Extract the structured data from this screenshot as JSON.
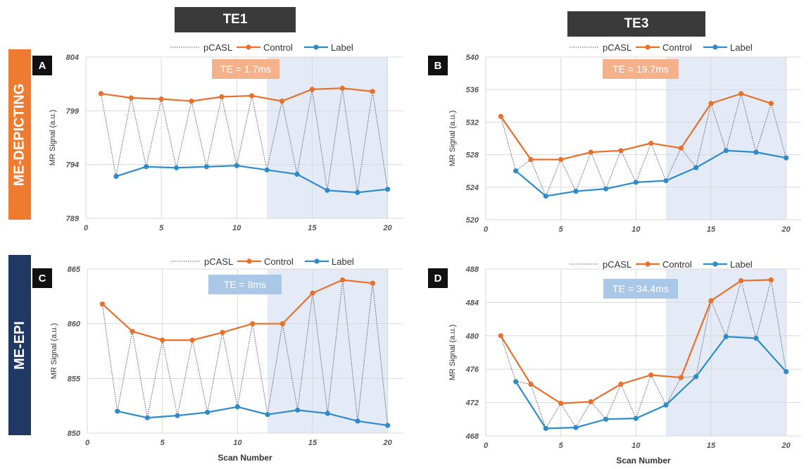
{
  "columns": [
    "TE1",
    "TE3"
  ],
  "rows": [
    "ME-DEPICTING",
    "ME-EPI"
  ],
  "colors": {
    "control": "#E8702A",
    "label": "#2E8BC9",
    "pcasl": "#5a5a7a",
    "shade": "#e4ebf6",
    "te_orange": "#F5B28A",
    "te_blue": "#A9C8E8",
    "row_depicting": "#EE7B30",
    "row_epi": "#1F3864",
    "header": "#3a3a3a"
  },
  "legend": [
    "pCASL",
    "Control",
    "Label"
  ],
  "xlabel": "Scan Number",
  "chart_data": [
    {
      "type": "line",
      "panel": "A",
      "te_text": "TE = 1.7ms",
      "te_color": "te_orange",
      "ylabel": "MR Signal (a.u.)",
      "ylim": [
        789,
        804
      ],
      "yticks": [
        789,
        794,
        799,
        804
      ],
      "xlim": [
        0,
        21
      ],
      "xticks": [
        0,
        5,
        10,
        15,
        20
      ],
      "shade": [
        12,
        20
      ],
      "series": [
        {
          "name": "Control",
          "x": [
            1,
            3,
            5,
            7,
            9,
            11,
            13,
            15,
            17,
            19
          ],
          "y": [
            800.6,
            800.2,
            800.1,
            799.9,
            800.3,
            800.4,
            799.9,
            801.0,
            801.1,
            800.8
          ]
        },
        {
          "name": "Label",
          "x": [
            2,
            4,
            6,
            8,
            10,
            12,
            14,
            16,
            18,
            20
          ],
          "y": [
            792.9,
            793.8,
            793.7,
            793.8,
            793.9,
            793.5,
            793.1,
            791.6,
            791.4,
            791.7
          ]
        }
      ]
    },
    {
      "type": "line",
      "panel": "B",
      "te_text": "TE = 19.7ms",
      "te_color": "te_orange",
      "ylabel": "MR Signal (a.u.)",
      "ylim": [
        520,
        540
      ],
      "yticks": [
        520,
        524,
        528,
        532,
        536,
        540
      ],
      "xlim": [
        0,
        21
      ],
      "xticks": [
        0,
        5,
        10,
        15,
        20
      ],
      "shade": [
        12,
        20
      ],
      "series": [
        {
          "name": "Control",
          "x": [
            1,
            3,
            5,
            7,
            9,
            11,
            13,
            15,
            17,
            19
          ],
          "y": [
            532.7,
            527.4,
            527.4,
            528.3,
            528.5,
            529.4,
            528.8,
            534.3,
            535.5,
            534.3
          ]
        },
        {
          "name": "Label",
          "x": [
            2,
            4,
            6,
            8,
            10,
            12,
            14,
            16,
            18,
            20
          ],
          "y": [
            526.0,
            522.9,
            523.5,
            523.8,
            524.6,
            524.8,
            526.4,
            528.5,
            528.3,
            527.6
          ]
        }
      ]
    },
    {
      "type": "line",
      "panel": "C",
      "te_text": "TE = 8ms",
      "te_color": "te_blue",
      "ylabel": "MR Signal (a.u.)",
      "ylim": [
        850,
        865
      ],
      "yticks": [
        850,
        855,
        860,
        865
      ],
      "xlim": [
        0,
        21
      ],
      "xticks": [
        0,
        5,
        10,
        15,
        20
      ],
      "shade": [
        12,
        20
      ],
      "series": [
        {
          "name": "Control",
          "x": [
            1,
            3,
            5,
            7,
            9,
            11,
            13,
            15,
            17,
            19
          ],
          "y": [
            861.8,
            859.3,
            858.5,
            858.5,
            859.2,
            860.0,
            860.0,
            862.8,
            864.0,
            863.7
          ]
        },
        {
          "name": "Label",
          "x": [
            2,
            4,
            6,
            8,
            10,
            12,
            14,
            16,
            18,
            20
          ],
          "y": [
            852.0,
            851.4,
            851.6,
            851.9,
            852.4,
            851.7,
            852.1,
            851.8,
            851.1,
            850.7
          ]
        }
      ]
    },
    {
      "type": "line",
      "panel": "D",
      "te_text": "TE = 34.4ms",
      "te_color": "te_blue",
      "ylabel": "MR Signal (a.u.)",
      "ylim": [
        468,
        488
      ],
      "yticks": [
        468,
        472,
        476,
        480,
        484,
        488
      ],
      "xlim": [
        0,
        21
      ],
      "xticks": [
        0,
        5,
        10,
        15,
        20
      ],
      "shade": [
        12,
        20
      ],
      "series": [
        {
          "name": "Control",
          "x": [
            1,
            3,
            5,
            7,
            9,
            11,
            13,
            15,
            17,
            19
          ],
          "y": [
            480.0,
            474.2,
            471.9,
            472.1,
            474.2,
            475.3,
            475.0,
            484.2,
            486.6,
            486.7
          ]
        },
        {
          "name": "Label",
          "x": [
            2,
            4,
            6,
            8,
            10,
            12,
            14,
            16,
            18,
            20
          ],
          "y": [
            474.5,
            468.9,
            469.0,
            470.0,
            470.1,
            471.7,
            475.1,
            479.9,
            479.7,
            475.7
          ]
        }
      ]
    }
  ]
}
